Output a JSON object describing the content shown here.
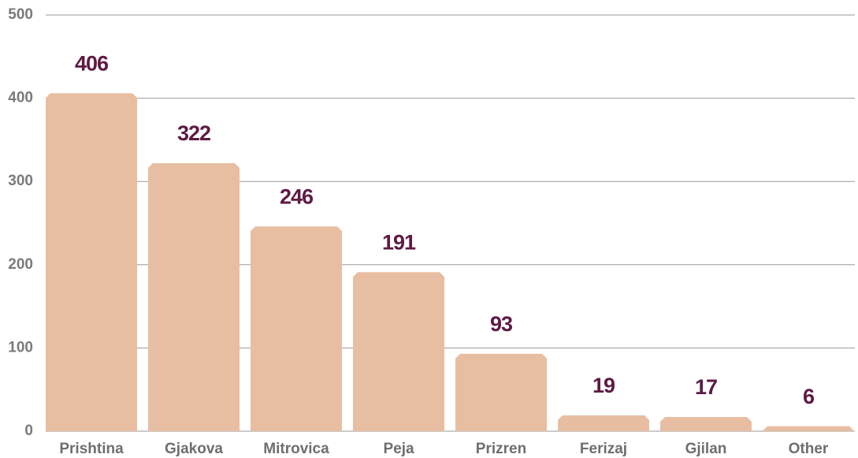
{
  "chart_data": {
    "type": "bar",
    "categories": [
      "Prishtina",
      "Gjakova",
      "Mitrovica",
      "Peja",
      "Prizren",
      "Ferizaj",
      "Gjilan",
      "Other"
    ],
    "values": [
      406,
      322,
      246,
      191,
      93,
      19,
      17,
      6
    ],
    "color": "#e8bea2",
    "label_color": "#5e1a42",
    "ylim": [
      0,
      500
    ],
    "yticks": [
      0,
      100,
      200,
      300,
      400,
      500
    ],
    "grid": true
  }
}
